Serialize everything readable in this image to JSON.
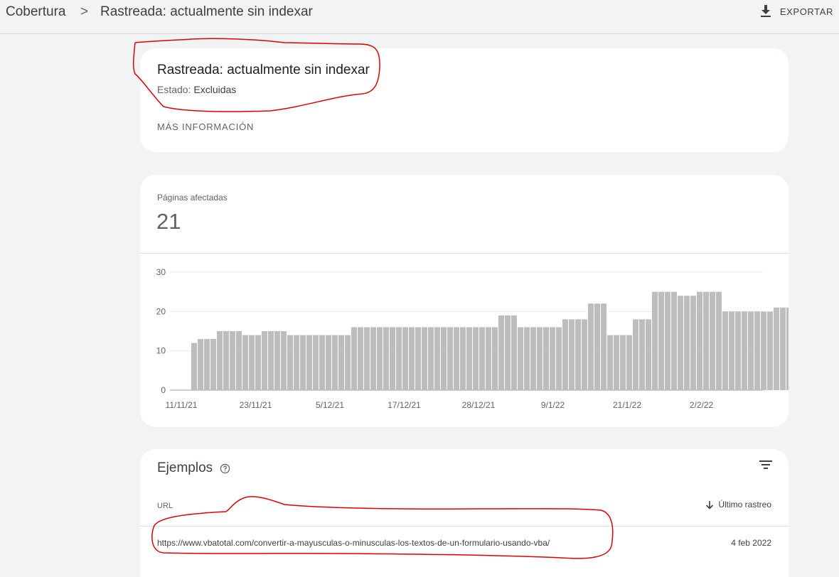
{
  "breadcrumb": {
    "root": "Cobertura",
    "separator": ">",
    "current": "Rastreada: actualmente sin indexar"
  },
  "toolbar": {
    "export_label": "EXPORTAR",
    "export_icon": "download-icon"
  },
  "info_card": {
    "title": "Rastreada: actualmente sin indexar",
    "status_label": "Estado:",
    "status_value": "Excluidas",
    "more_info_label": "MÁS INFORMACIÓN"
  },
  "metric": {
    "label": "Páginas afectadas",
    "value": "21"
  },
  "chart_data": {
    "type": "bar",
    "x_tick_labels": [
      "11/11/21",
      "23/11/21",
      "5/12/21",
      "17/12/21",
      "28/12/21",
      "9/1/22",
      "21/1/22",
      "2/2/22"
    ],
    "values": [
      12,
      13,
      13,
      13,
      15,
      15,
      15,
      15,
      14,
      14,
      14,
      15,
      15,
      15,
      15,
      14,
      14,
      14,
      14,
      14,
      14,
      14,
      14,
      14,
      14,
      16,
      16,
      16,
      16,
      16,
      16,
      16,
      16,
      16,
      16,
      16,
      16,
      16,
      16,
      16,
      16,
      16,
      16,
      16,
      16,
      16,
      16,
      16,
      19,
      19,
      19,
      16,
      16,
      16,
      16,
      16,
      16,
      16,
      18,
      18,
      18,
      18,
      22,
      22,
      22,
      14,
      14,
      14,
      14,
      18,
      18,
      18,
      25,
      25,
      25,
      25,
      24,
      24,
      24,
      25,
      25,
      25,
      25,
      20,
      20,
      20,
      20,
      20,
      20,
      20,
      20,
      21,
      21,
      21
    ],
    "ylim": [
      0,
      30
    ],
    "y_ticks": [
      0,
      10,
      20,
      30
    ],
    "grid": true,
    "bar_color": "#bdbdbd"
  },
  "examples": {
    "title": "Ejemplos",
    "help_icon": "help-circle-icon",
    "filter_icon": "filter-icon",
    "columns": {
      "url": "URL",
      "last_crawl": "Último rastreo"
    },
    "sort_icon": "arrow-down-icon",
    "rows": [
      {
        "url": "https://www.vbatotal.com/convertir-a-mayusculas-o-minusculas-los-textos-de-un-formulario-usando-vba/",
        "date": "4 feb 2022"
      }
    ]
  },
  "colors": {
    "background": "#f1f3f4",
    "card": "#ffffff",
    "annotation": "#e00000"
  }
}
